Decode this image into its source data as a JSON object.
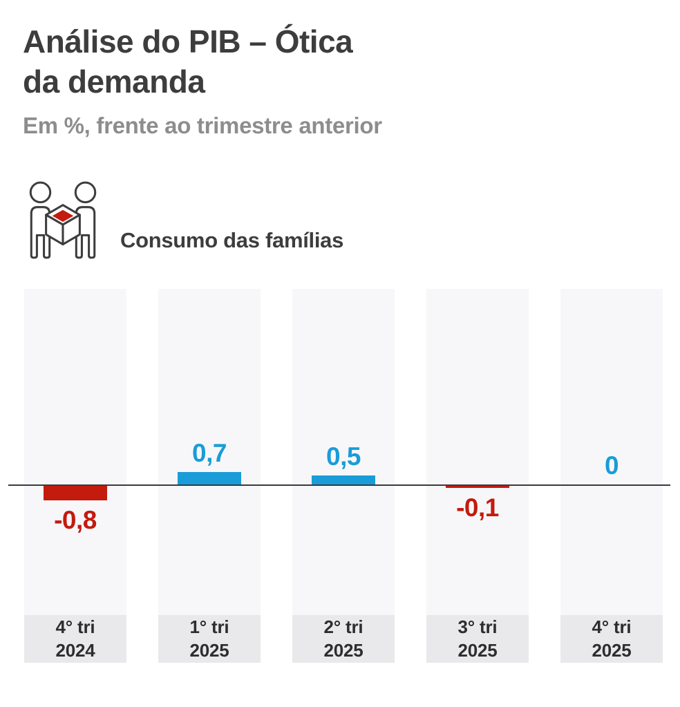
{
  "header": {
    "title_line1": "Análise do PIB – Ótica",
    "title_line2": "da demanda",
    "subtitle": "Em %, frente ao trimestre anterior"
  },
  "section": {
    "icon": "people-holding-box-icon",
    "label": "Consumo das famílias"
  },
  "chart_data": {
    "type": "bar",
    "title": "Análise do PIB – Ótica da demanda — Consumo das famílias",
    "unit": "%, frente ao trimestre anterior",
    "categories": [
      "4° tri 2024",
      "1° tri 2025",
      "2° tri 2025",
      "3° tri 2025",
      "4° tri 2025"
    ],
    "category_lines": [
      [
        "4° tri",
        "2024"
      ],
      [
        "1° tri",
        "2025"
      ],
      [
        "2° tri",
        "2025"
      ],
      [
        "3° tri",
        "2025"
      ],
      [
        "4° tri",
        "2025"
      ]
    ],
    "values": [
      -0.8,
      0.7,
      0.5,
      -0.1,
      0
    ],
    "value_labels": [
      "-0,8",
      "0,7",
      "0,5",
      "-0,1",
      "0"
    ],
    "baseline": 0,
    "grid": false,
    "legend": false,
    "positive_color": "#1a9cd8",
    "negative_color": "#c31b0e"
  },
  "colors": {
    "title_text": "#3d3d3d",
    "subtitle_text": "#8d8d8d",
    "column_background": "#f7f7f9",
    "category_background": "#e9e9eb",
    "category_text": "#2d2d2d",
    "axis_line": "#3a3a3a",
    "positive_bar": "#1a9cd8",
    "negative_bar": "#c31b0e",
    "icon_outline": "#3d3d3d",
    "icon_accent": "#c31b0e"
  }
}
